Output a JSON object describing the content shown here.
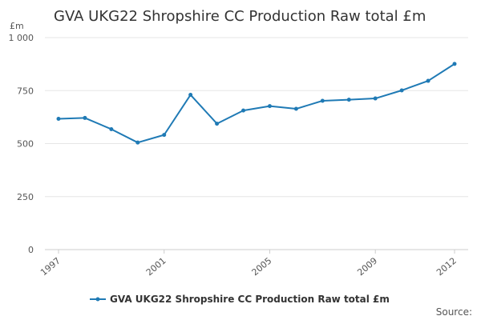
{
  "chart_data": {
    "type": "line",
    "title": "GVA UKG22 Shropshire CC Production Raw total £m",
    "ylabel": "£m",
    "xlabel": "",
    "ylim": [
      0,
      1000
    ],
    "yticks": [
      "0",
      "250",
      "500",
      "750",
      "1 000"
    ],
    "xticks": [
      "1997",
      "2001",
      "2005",
      "2009",
      "2012"
    ],
    "x": [
      1997,
      1998,
      1999,
      2000,
      2001,
      2002,
      2003,
      2004,
      2005,
      2006,
      2007,
      2008,
      2009,
      2010,
      2011,
      2012
    ],
    "series": [
      {
        "name": "GVA UKG22 Shropshire CC Production Raw total £m",
        "color": "#1f7ab5",
        "values": [
          617,
          621,
          568,
          505,
          541,
          730,
          594,
          656,
          677,
          664,
          702,
          707,
          713,
          751,
          796,
          876
        ]
      }
    ],
    "grid": true,
    "legend": "bottom-center"
  },
  "source_label": "Source:"
}
